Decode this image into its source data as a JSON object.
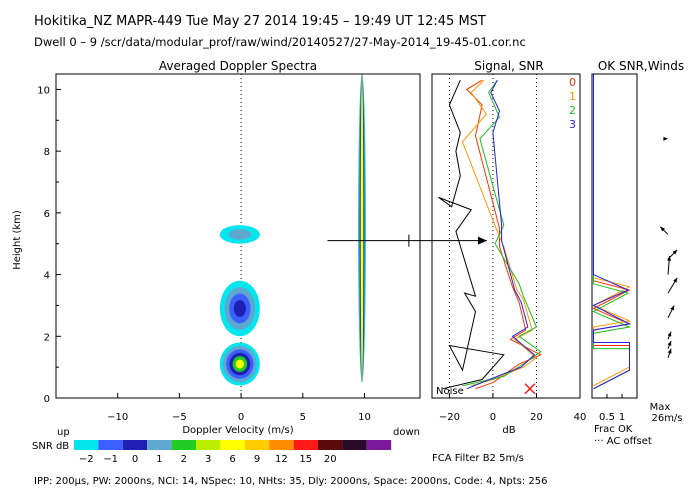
{
  "header": {
    "line1": "Hokitika_NZ  MAPR-449  Tue May 27 2014 19:45 – 19:49 UT 12:45 MST",
    "line2": "Dwell  0 –  9   /scr/data/modular_prof/raw/wind/20140527/27-May-2014_19-45-01.cor.nc"
  },
  "footer": {
    "line": "IPP: 200μs,  PW: 2000ns,  NCI:  14,  NSpec: 10, NHts: 35,  Dly: 2000ns,  Space: 2000ns,  Code: 4,  Npts: 256"
  },
  "fca_filter": "FCA Filter B2  5m/s",
  "colors": {
    "palette": [
      "#00e5ee",
      "#3b5fff",
      "#1f1fb4",
      "#5ea8d0",
      "#22cc22",
      "#bbee00",
      "#ffff00",
      "#ffcc00",
      "#ff8c00",
      "#ff1a1a",
      "#5a0a0a",
      "#2a0a2a",
      "#7a1a9a"
    ],
    "channel0": "#ff3300",
    "channel1": "#ff9900",
    "channel2": "#22bb22",
    "channel3": "#2222dd"
  },
  "chart_data": [
    {
      "type": "heatmap",
      "title": "Averaged Doppler Spectra",
      "xlabel": "Doppler Velocity (m/s)",
      "ylabel": "Height (km)",
      "xlim": [
        -15,
        14.5
      ],
      "ylim": [
        0,
        10.5
      ],
      "x_ticks": [
        -10,
        -5,
        0,
        5,
        10
      ],
      "y_ticks": [
        0,
        2,
        4,
        6,
        8,
        10
      ],
      "x_tick_labels": [
        "−10",
        "−5",
        "0",
        "5",
        "10"
      ],
      "y_tick_labels": [
        "0",
        "2",
        "4",
        "6",
        "8",
        "10"
      ],
      "left_label": "up",
      "right_label": "down",
      "wind_marker": {
        "height_km": 5.1,
        "velocity_min": 7,
        "velocity_max": 20,
        "tick_velocity": 13.6
      },
      "colorbar": {
        "label": "SNR dB",
        "tick_labels": [
          "−2",
          "−1",
          "0",
          "1",
          "2",
          "3",
          "6",
          "9",
          "12",
          "15",
          "20"
        ]
      },
      "blobs": [
        {
          "velocity": 9.8,
          "height_range": [
            0.5,
            10.5
          ],
          "peak_snr_db": 3
        },
        {
          "velocity": -0.1,
          "height_range": [
            0.4,
            1.8
          ],
          "peak_snr_db": 3
        },
        {
          "velocity": -0.1,
          "height_range": [
            2.0,
            3.8
          ],
          "peak_snr_db": 0
        },
        {
          "velocity": -0.1,
          "height_range": [
            5.0,
            5.6
          ],
          "peak_snr_db": -2
        }
      ]
    },
    {
      "type": "line",
      "title": "Signal, SNR",
      "xlabel": "dB",
      "xlim": [
        -28,
        40
      ],
      "ylim": [
        0,
        10.5
      ],
      "x_ticks": [
        -20,
        0,
        20,
        40
      ],
      "x_tick_labels": [
        "−20",
        "0",
        "20",
        "40"
      ],
      "noise_label": "Noise",
      "legend": [
        "0",
        "1",
        "2",
        "3"
      ],
      "series": [
        {
          "name": "signal",
          "points": [
            [
              -23,
              0.3
            ],
            [
              -5,
              0.6
            ],
            [
              5,
              1.4
            ],
            [
              -20,
              1.7
            ],
            [
              -14,
              0.9
            ],
            [
              -8,
              2.8
            ],
            [
              -13,
              3.4
            ],
            [
              -8,
              3.3
            ],
            [
              -17,
              5.4
            ],
            [
              -10,
              6.1
            ],
            [
              -25,
              6.5
            ],
            [
              -19,
              6.2
            ],
            [
              -15,
              7.2
            ],
            [
              -17,
              8.0
            ],
            [
              -15,
              8.6
            ],
            [
              -20,
              9.5
            ],
            [
              -15,
              10.3
            ]
          ]
        },
        {
          "name": "0",
          "points": [
            [
              -8,
              0.3
            ],
            [
              0,
              0.5
            ],
            [
              12,
              1.1
            ],
            [
              22,
              1.4
            ],
            [
              8,
              1.9
            ],
            [
              15,
              2.2
            ],
            [
              12,
              3.1
            ],
            [
              9,
              3.6
            ],
            [
              3,
              4.9
            ],
            [
              3,
              5.5
            ],
            [
              -8,
              8.5
            ],
            [
              -5,
              9.5
            ],
            [
              -12,
              10.0
            ],
            [
              -5,
              10.3
            ]
          ]
        },
        {
          "name": "1",
          "points": [
            [
              -10,
              0.4
            ],
            [
              0,
              0.6
            ],
            [
              14,
              1.0
            ],
            [
              20,
              1.3
            ],
            [
              10,
              1.9
            ],
            [
              18,
              2.2
            ],
            [
              14,
              3.2
            ],
            [
              11,
              3.5
            ],
            [
              5,
              4.9
            ],
            [
              2,
              5.4
            ],
            [
              -14,
              8.3
            ],
            [
              -3,
              9.2
            ],
            [
              -10,
              9.9
            ],
            [
              -4,
              10.3
            ]
          ]
        },
        {
          "name": "2",
          "points": [
            [
              -14,
              0.4
            ],
            [
              5,
              0.7
            ],
            [
              16,
              1.2
            ],
            [
              22,
              1.5
            ],
            [
              12,
              2.0
            ],
            [
              20,
              2.3
            ],
            [
              14,
              3.3
            ],
            [
              12,
              3.7
            ],
            [
              1,
              5.0
            ],
            [
              5,
              5.6
            ],
            [
              -6,
              8.4
            ],
            [
              3,
              9.1
            ],
            [
              -2,
              9.9
            ],
            [
              2,
              10.3
            ]
          ]
        },
        {
          "name": "3",
          "points": [
            [
              -12,
              0.3
            ],
            [
              2,
              0.7
            ],
            [
              13,
              1.0
            ],
            [
              19,
              1.4
            ],
            [
              9,
              2.0
            ],
            [
              16,
              2.3
            ],
            [
              13,
              3.1
            ],
            [
              10,
              3.5
            ],
            [
              4,
              5.1
            ],
            [
              4,
              5.6
            ],
            [
              0,
              8.6
            ],
            [
              3,
              9.3
            ],
            [
              -1,
              9.9
            ],
            [
              2,
              10.3
            ]
          ]
        }
      ]
    },
    {
      "type": "line",
      "title": "OK SNR,Winds",
      "xlabel": "Frac OK",
      "xlim": [
        0,
        1.5
      ],
      "ylim": [
        0,
        10.5
      ],
      "x_ticks": [
        0.5,
        1
      ],
      "x_tick_labels": [
        "0.5",
        "1"
      ],
      "ac_label": "··· AC offset",
      "max_label": "Max",
      "max_value": "26m/s",
      "series": [
        {
          "name": "0",
          "points": [
            [
              0.05,
              0.3
            ],
            [
              1.25,
              0.9
            ],
            [
              1.25,
              1.7
            ],
            [
              0.05,
              1.7
            ],
            [
              0.05,
              2.2
            ],
            [
              1.25,
              2.4
            ],
            [
              0.05,
              2.9
            ],
            [
              1.25,
              3.5
            ],
            [
              0.05,
              3.8
            ],
            [
              0.05,
              10.5
            ]
          ]
        },
        {
          "name": "1",
          "points": [
            [
              0.05,
              0.4
            ],
            [
              1.25,
              1.0
            ],
            [
              1.25,
              1.8
            ],
            [
              0.05,
              1.8
            ],
            [
              0.05,
              2.3
            ],
            [
              1.25,
              2.5
            ],
            [
              0.05,
              3.0
            ],
            [
              1.25,
              3.6
            ],
            [
              0.05,
              3.9
            ],
            [
              0.05,
              10.5
            ]
          ]
        },
        {
          "name": "2",
          "points": [
            [
              0.05,
              0.3
            ],
            [
              1.25,
              0.9
            ],
            [
              1.25,
              1.6
            ],
            [
              0.05,
              1.6
            ],
            [
              0.05,
              2.1
            ],
            [
              1.25,
              2.3
            ],
            [
              0.05,
              2.8
            ],
            [
              1.2,
              3.4
            ],
            [
              0.05,
              3.7
            ],
            [
              0.05,
              10.5
            ]
          ]
        },
        {
          "name": "3",
          "points": [
            [
              0.05,
              0.3
            ],
            [
              1.25,
              0.9
            ],
            [
              1.25,
              1.8
            ],
            [
              0.05,
              1.8
            ],
            [
              0.05,
              2.2
            ],
            [
              1.25,
              2.4
            ],
            [
              0.05,
              3.0
            ],
            [
              1.2,
              3.5
            ],
            [
              0.05,
              4.0
            ],
            [
              0.05,
              10.5
            ]
          ]
        }
      ],
      "winds": [
        {
          "height_km": 1.3,
          "u": 2,
          "v": 6
        },
        {
          "height_km": 1.6,
          "u": 2,
          "v": 5
        },
        {
          "height_km": 1.9,
          "u": 2,
          "v": 5
        },
        {
          "height_km": 2.6,
          "u": 4,
          "v": 8
        },
        {
          "height_km": 3.4,
          "u": 6,
          "v": 10
        },
        {
          "height_km": 4.0,
          "u": 1,
          "v": 12
        },
        {
          "height_km": 4.5,
          "u": 6,
          "v": 6
        },
        {
          "height_km": 5.3,
          "u": -5,
          "v": 5
        },
        {
          "height_km": 8.4,
          "u": 0,
          "v": 0
        }
      ]
    }
  ]
}
